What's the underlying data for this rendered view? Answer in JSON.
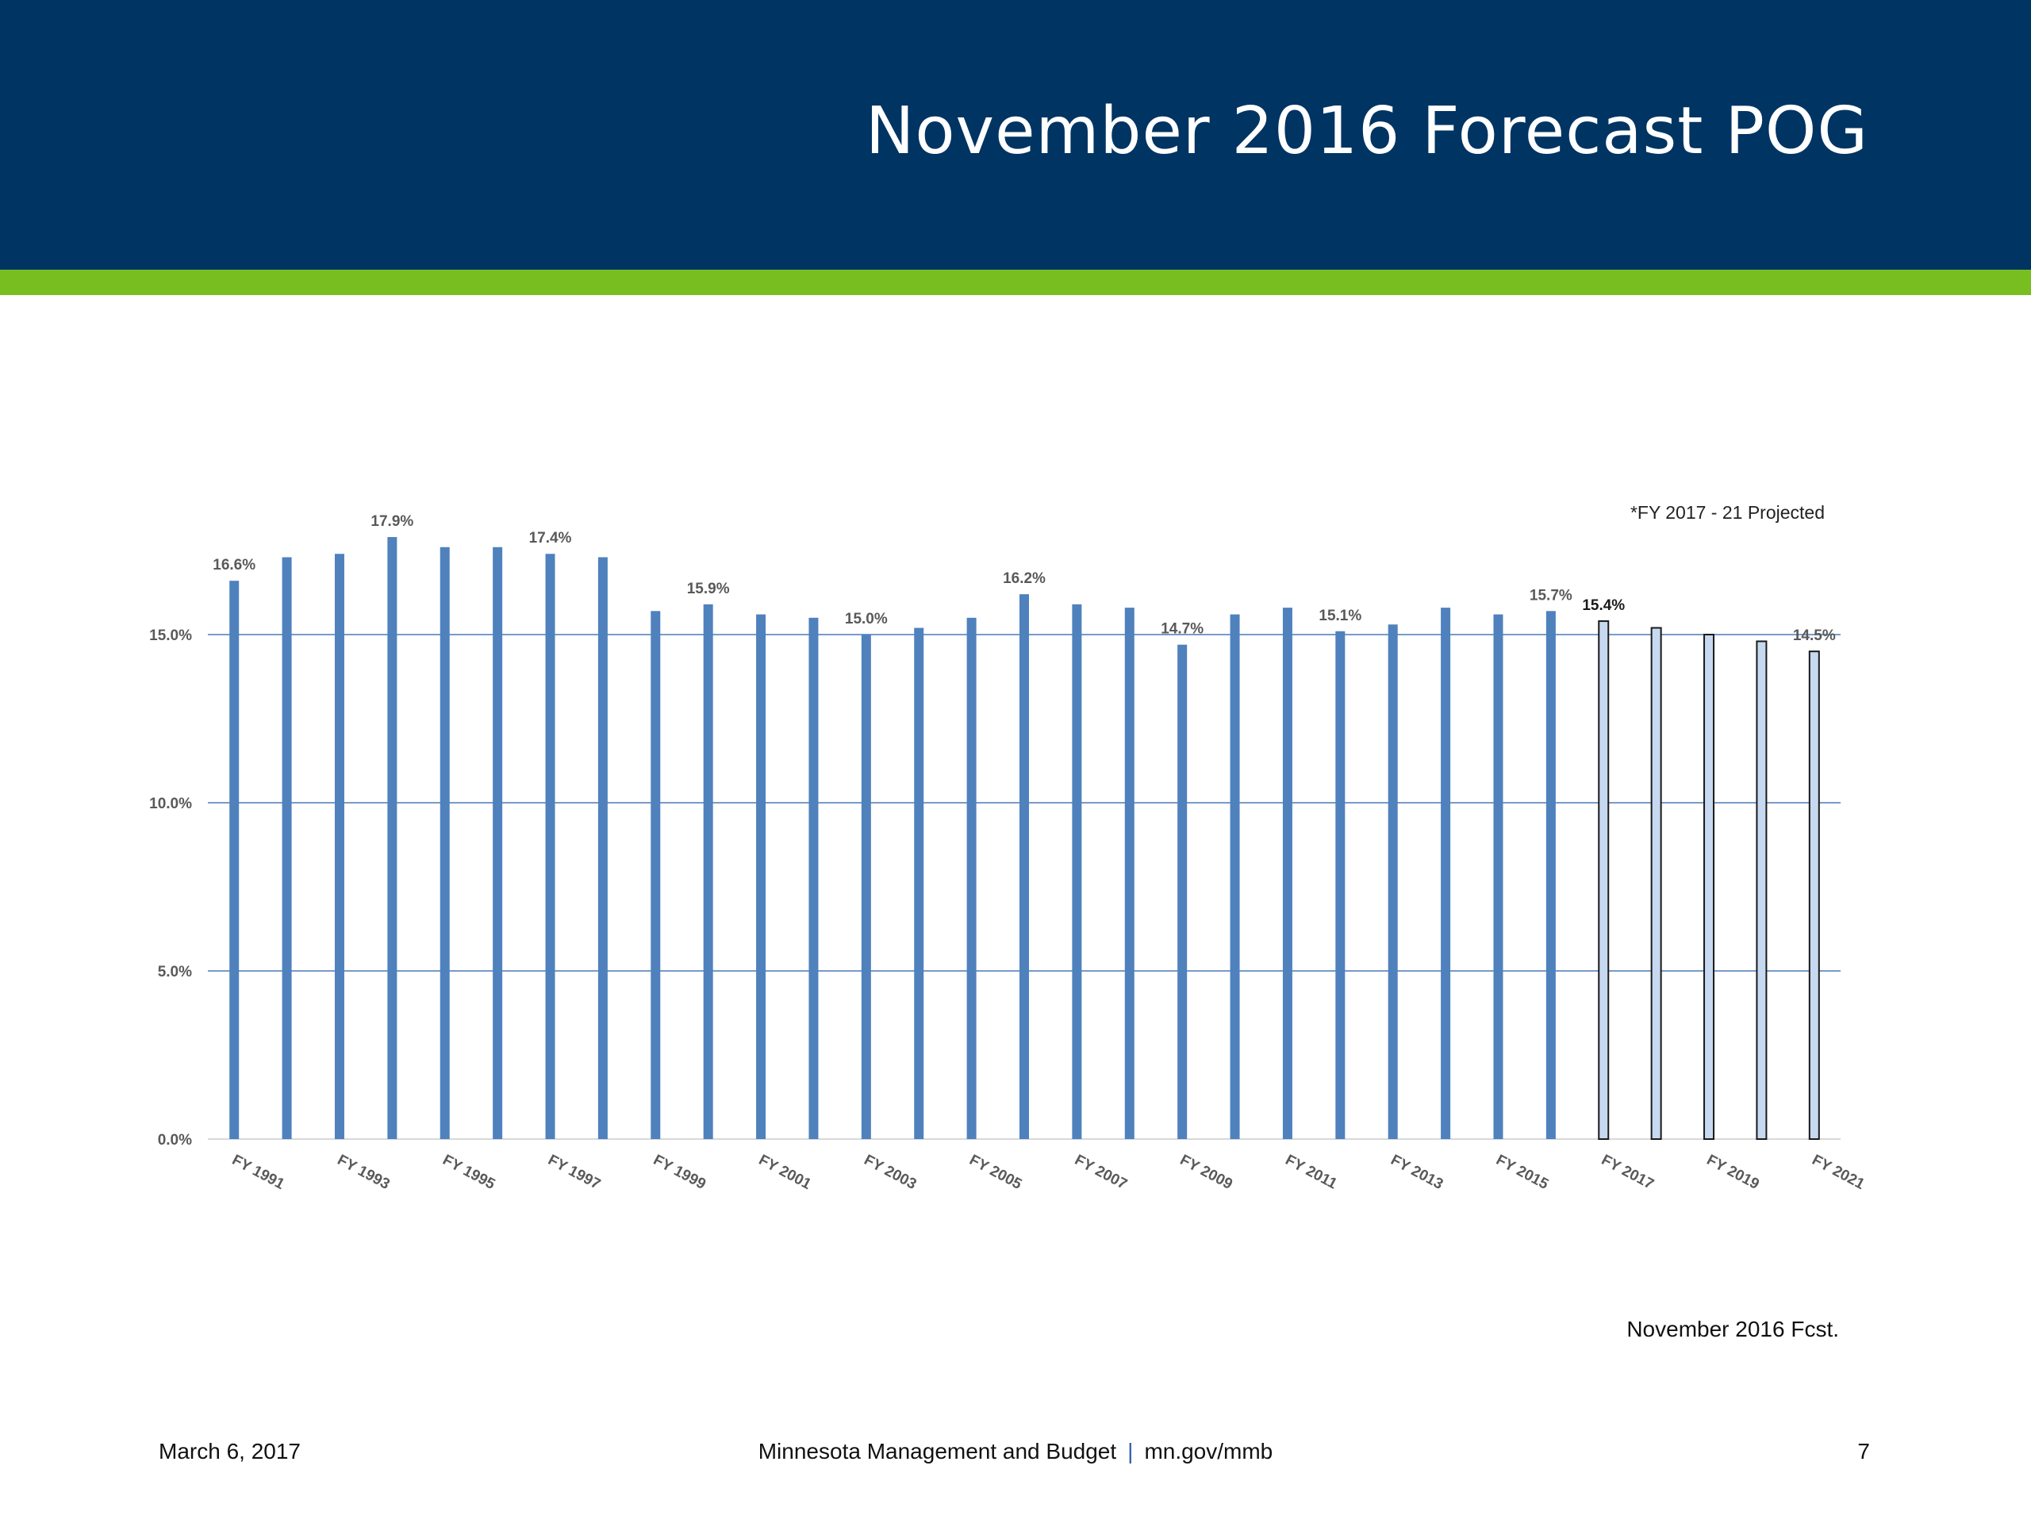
{
  "slide": {
    "title": "November 2016 Forecast POG",
    "note": "November 2016 Fcst.",
    "footer": {
      "date": "March 6, 2017",
      "org": "Minnesota Management and Budget",
      "separator": "|",
      "url": "mn.gov/mmb",
      "page": "7"
    },
    "colors": {
      "header": "#003462",
      "accent": "#78be20"
    }
  },
  "chart_data": {
    "type": "bar",
    "annotation": "*FY 2017 - 21 Projected",
    "categories": [
      "FY 1991",
      "FY 1992",
      "FY 1993",
      "FY 1994",
      "FY 1995",
      "FY 1996",
      "FY 1997",
      "FY 1998",
      "FY 1999",
      "FY 2000",
      "FY 2001",
      "FY 2002",
      "FY 2003",
      "FY 2004",
      "FY 2005",
      "FY 2006",
      "FY 2007",
      "FY 2008",
      "FY 2009",
      "FY 2010",
      "FY 2011",
      "FY 2012",
      "FY 2013",
      "FY 2014",
      "FY 2015",
      "FY 2016",
      "FY 2017",
      "FY 2018",
      "FY 2019",
      "FY 2020",
      "FY 2021"
    ],
    "tick_labels": [
      "FY 1991",
      "",
      "FY 1993",
      "",
      "FY 1995",
      "",
      "FY 1997",
      "",
      "FY 1999",
      "",
      "FY 2001",
      "",
      "FY 2003",
      "",
      "FY 2005",
      "",
      "FY 2007",
      "",
      "FY 2009",
      "",
      "FY 2011",
      "",
      "FY 2013",
      "",
      "FY 2015",
      "",
      "FY 2017",
      "",
      "FY 2019",
      "",
      "FY 2021"
    ],
    "values": [
      16.6,
      17.3,
      17.4,
      17.9,
      17.6,
      17.6,
      17.4,
      17.3,
      15.7,
      15.9,
      15.6,
      15.5,
      15.0,
      15.2,
      15.5,
      16.2,
      15.9,
      15.8,
      14.7,
      15.6,
      15.8,
      15.1,
      15.3,
      15.8,
      15.6,
      15.7,
      15.4,
      15.2,
      15.0,
      14.8,
      14.5
    ],
    "data_labels": [
      "16.6%",
      "",
      "",
      "17.9%",
      "",
      "",
      "17.4%",
      "",
      "",
      "15.9%",
      "",
      "",
      "15.0%",
      "",
      "",
      "16.2%",
      "",
      "",
      "14.7%",
      "",
      "",
      "15.1%",
      "",
      "",
      "",
      "15.7%",
      "15.4%",
      "",
      "",
      "",
      "14.5%"
    ],
    "projected_from_index": 26,
    "yticks": [
      "0.0%",
      "5.0%",
      "10.0%",
      "15.0%"
    ],
    "ylim": [
      0,
      20
    ],
    "grid": true,
    "bar_color": "#4f81bd",
    "projected_color": "#c6d9f0",
    "grid_color": "#4a7ab8"
  }
}
